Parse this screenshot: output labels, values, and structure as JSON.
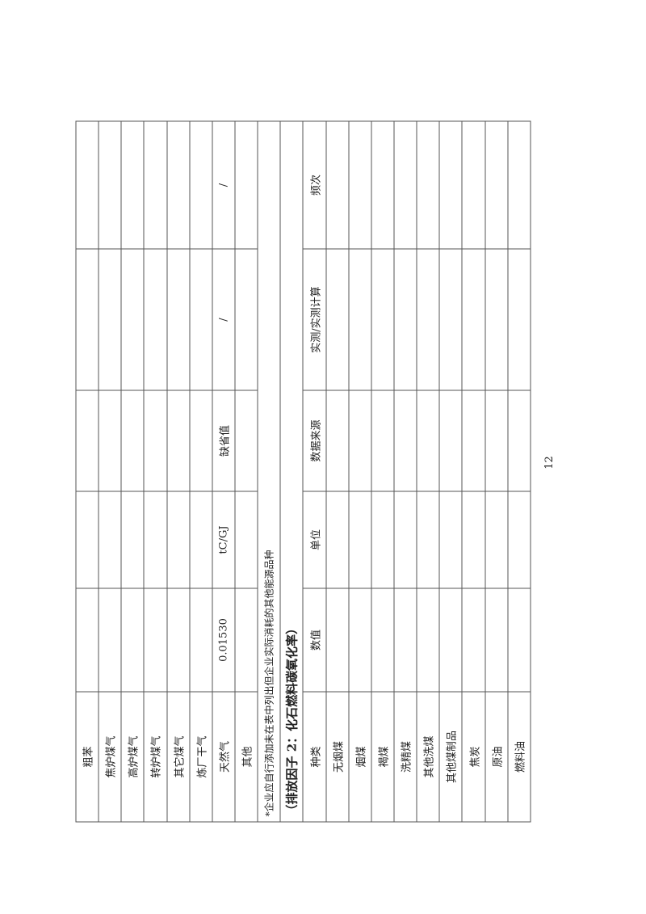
{
  "section1": {
    "rows": [
      {
        "name": "粗苯",
        "value": "",
        "unit": "",
        "source": "",
        "measured": "",
        "frequency": ""
      },
      {
        "name": "焦炉煤气",
        "value": "",
        "unit": "",
        "source": "",
        "measured": "",
        "frequency": ""
      },
      {
        "name": "高炉煤气",
        "value": "",
        "unit": "",
        "source": "",
        "measured": "",
        "frequency": ""
      },
      {
        "name": "转炉煤气",
        "value": "",
        "unit": "",
        "source": "",
        "measured": "",
        "frequency": ""
      },
      {
        "name": "其它煤气",
        "value": "",
        "unit": "",
        "source": "",
        "measured": "",
        "frequency": ""
      },
      {
        "name": "炼厂干气",
        "value": "",
        "unit": "",
        "source": "",
        "measured": "",
        "frequency": ""
      },
      {
        "name": "天然气",
        "value": "0.01530",
        "unit": "tC/GJ",
        "source": "缺省值",
        "measured": "/",
        "frequency": "/"
      },
      {
        "name": "其他",
        "value": "",
        "unit": "",
        "source": "",
        "measured": "",
        "frequency": ""
      }
    ],
    "note": "*企业应自行添加未在表中列出但企业实际消耗的其他能源品种"
  },
  "section2": {
    "heading": "（排放因子 2：化石燃料碳氧化率）",
    "headers": {
      "name": "种类",
      "value": "数值",
      "unit": "单位",
      "source": "数据来源",
      "measured": "实测/实测计算",
      "frequency": "频次"
    },
    "rows": [
      {
        "name": "无烟煤"
      },
      {
        "name": "烟煤"
      },
      {
        "name": "褐煤"
      },
      {
        "name": "洗精煤"
      },
      {
        "name": "其他洗煤"
      },
      {
        "name": "其他煤制品"
      },
      {
        "name": "焦炭"
      },
      {
        "name": "原油"
      },
      {
        "name": "燃料油"
      }
    ]
  },
  "page_number": "12"
}
